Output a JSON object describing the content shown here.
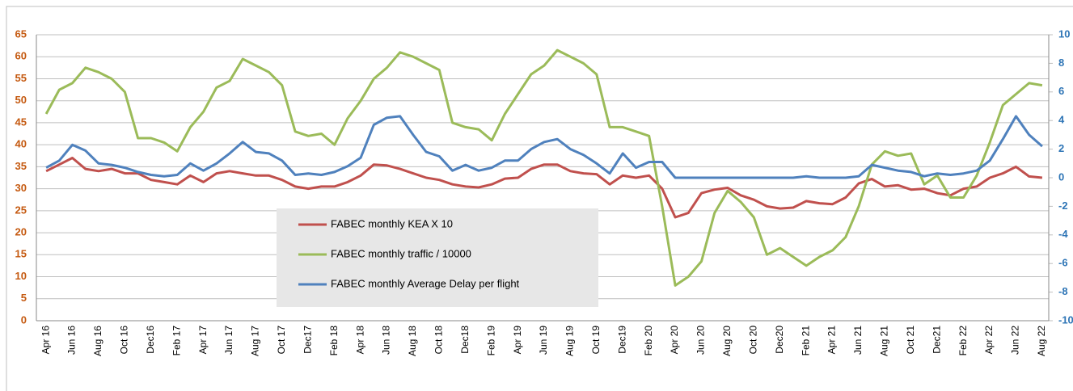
{
  "chart_data": {
    "type": "line",
    "categories": [
      "Apr 16",
      null,
      "Jun 16",
      null,
      "Aug 16",
      null,
      "Oct 16",
      null,
      "Dec16",
      null,
      "Feb 17",
      null,
      "Apr 17",
      null,
      "Jun 17",
      null,
      "Aug 17",
      null,
      "Oct 17",
      null,
      "Dec17",
      null,
      "Feb 18",
      null,
      "Apr 18",
      null,
      "Jun 18",
      null,
      "Aug 18",
      null,
      "Oct 18",
      null,
      "Dec18",
      null,
      "Feb 19",
      null,
      "Apr 19",
      null,
      "Jun 19",
      null,
      "Aug 19",
      null,
      "Oct 19",
      null,
      "Dec19",
      null,
      "Feb 20",
      null,
      "Apr 20",
      null,
      "Jun 20",
      null,
      "Aug 20",
      null,
      "Oct 20",
      null,
      "Dec20",
      null,
      "Feb 21",
      null,
      "Apr 21",
      null,
      "Jun 21",
      null,
      "Aug 21",
      null,
      "Oct 21",
      null,
      "Dec21",
      null,
      "Feb 22",
      null,
      "Apr 22",
      null,
      "Jun 22",
      null,
      "Aug 22"
    ],
    "series": [
      {
        "name": "FABEC monthly KEA X 10",
        "color": "#c0504d",
        "values": [
          34,
          35.5,
          37,
          34.5,
          34,
          34.5,
          33.5,
          33.5,
          32,
          31.5,
          31,
          33,
          31.5,
          33.5,
          34,
          33.5,
          33,
          33,
          32,
          30.5,
          30,
          30.5,
          30.5,
          31.5,
          33,
          35.5,
          35.3,
          34.5,
          33.5,
          32.5,
          32,
          31,
          30.5,
          30.3,
          31,
          32.3,
          32.5,
          34.5,
          35.5,
          35.5,
          34,
          33.5,
          33.3,
          31,
          33,
          32.5,
          33,
          30,
          23.5,
          24.5,
          29,
          29.8,
          30.2,
          28.5,
          27.5,
          26,
          25.5,
          25.7,
          27.2,
          26.7,
          26.5,
          28,
          31.2,
          32.2,
          30.5,
          30.8,
          29.8,
          30,
          29,
          28.5,
          30,
          30.5,
          32.5,
          33.5,
          35,
          32.8,
          32.5
        ]
      },
      {
        "name": "FABEC monthly traffic / 10000",
        "color": "#9bbb59",
        "values": [
          47,
          52.5,
          54,
          57.5,
          56.5,
          55,
          52,
          41.5,
          41.5,
          40.5,
          38.5,
          44,
          47.5,
          53,
          54.5,
          59.5,
          58,
          56.5,
          53.5,
          43,
          42,
          42.5,
          40,
          46,
          50,
          55,
          57.5,
          61,
          60,
          58.5,
          57,
          45,
          44,
          43.5,
          41,
          47,
          51.5,
          56,
          58,
          61.5,
          60,
          58.5,
          56,
          44,
          44,
          43,
          42,
          26,
          8,
          10,
          13.5,
          24.5,
          29.5,
          27,
          23.5,
          15,
          16.5,
          14.5,
          12.5,
          14.5,
          16,
          19,
          26,
          35.5,
          38.5,
          37.5,
          38,
          31,
          33,
          28,
          28,
          33,
          40.5,
          49,
          51.5,
          54,
          53.5
        ]
      },
      {
        "name": "FABEC monthly Average Delay per flight",
        "color": "#4f81bd",
        "axis": "y2",
        "values": [
          0.7,
          1.2,
          2.3,
          1.9,
          1.0,
          0.9,
          0.7,
          0.4,
          0.2,
          0.1,
          0.2,
          1.0,
          0.5,
          1.0,
          1.7,
          2.5,
          1.8,
          1.7,
          1.2,
          0.2,
          0.3,
          0.2,
          0.4,
          0.8,
          1.4,
          3.7,
          4.2,
          4.3,
          3.0,
          1.8,
          1.5,
          0.5,
          0.9,
          0.5,
          0.7,
          1.2,
          1.2,
          2.0,
          2.5,
          2.7,
          2.0,
          1.6,
          1.0,
          0.3,
          1.7,
          0.7,
          1.1,
          1.1,
          0,
          0,
          0,
          0,
          0,
          0,
          0,
          0,
          0,
          0,
          0.1,
          0,
          0,
          0,
          0.1,
          0.9,
          0.7,
          0.5,
          0.4,
          0.1,
          0.3,
          0.2,
          0.3,
          0.5,
          1.2,
          2.7,
          4.3,
          3.0,
          2.2
        ]
      }
    ],
    "ylim": [
      0,
      65
    ],
    "yticks": [
      0,
      5,
      10,
      15,
      20,
      25,
      30,
      35,
      40,
      45,
      50,
      55,
      60,
      65
    ],
    "y2lim": [
      -10,
      10
    ],
    "y2ticks": [
      -10,
      -8,
      -6,
      -4,
      -2,
      0,
      2,
      4,
      6,
      8,
      10
    ],
    "grid": true,
    "legend": "center"
  }
}
